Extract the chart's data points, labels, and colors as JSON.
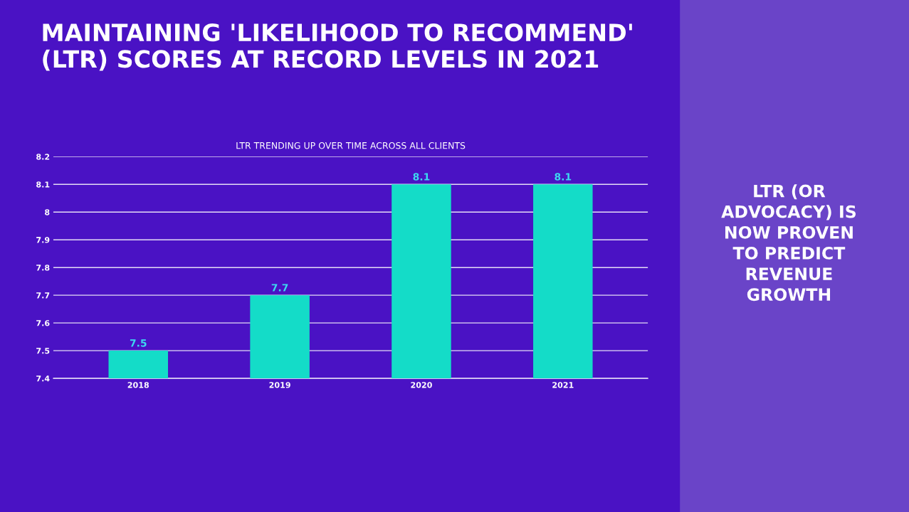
{
  "chart_data": {
    "type": "bar",
    "title": "MAINTAINING 'LIKELIHOOD TO RECOMMEND'\n(LTR) SCORES AT RECORD LEVELS IN 2021",
    "subtitle": "LTR TRENDING UP OVER TIME ACROSS ALL CLIENTS",
    "categories": [
      "2018",
      "2019",
      "2020",
      "2021"
    ],
    "values": [
      7.5,
      7.7,
      8.1,
      8.1
    ],
    "color": "#14dcc8",
    "ylim": [
      7.4,
      8.2
    ],
    "yticks": [
      {
        "value": 7.4,
        "label": "7.4"
      },
      {
        "value": 7.5,
        "label": "7.5"
      },
      {
        "value": 7.6,
        "label": "7.6"
      },
      {
        "value": 7.7,
        "label": "7.7"
      },
      {
        "value": 7.8,
        "label": "7.8"
      },
      {
        "value": 7.9,
        "label": "7.9"
      },
      {
        "value": 8,
        "label": "8"
      },
      {
        "value": 8.1,
        "label": "8.1"
      },
      {
        "value": 8.2,
        "label": "8.2"
      }
    ],
    "grid": "y",
    "data_labels": true,
    "annotations": [
      "LTR (OR\nADVOCACY) IS\nNOW PROVEN\nTO PREDICT\nREVENUE\nGROWTH"
    ]
  }
}
